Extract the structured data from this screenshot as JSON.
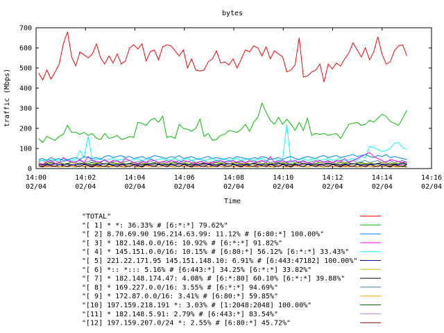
{
  "chart_data": {
    "type": "line",
    "title": "bytes",
    "xlabel": "Time",
    "ylabel": "traffic (Mbps)",
    "ylim": [
      0,
      700
    ],
    "yticks": [
      0,
      100,
      200,
      300,
      400,
      500,
      600,
      700
    ],
    "xlim": [
      0,
      16
    ],
    "xticks": [
      {
        "value": 0,
        "time": "14:00",
        "date": "02/04"
      },
      {
        "value": 2,
        "time": "14:02",
        "date": "02/04"
      },
      {
        "value": 4,
        "time": "14:04",
        "date": "02/04"
      },
      {
        "value": 6,
        "time": "14:06",
        "date": "02/04"
      },
      {
        "value": 8,
        "time": "14:08",
        "date": "02/04"
      },
      {
        "value": 10,
        "time": "14:10",
        "date": "02/04"
      },
      {
        "value": 12,
        "time": "14:12",
        "date": "02/04"
      },
      {
        "value": 14,
        "time": "14:14",
        "date": "02/04"
      },
      {
        "value": 16,
        "time": "14:16",
        "date": "02/04"
      }
    ],
    "x_range": [
      0.1,
      15.0
    ],
    "series": [
      {
        "name": "\"TOTAL\"",
        "color": "#ff0000",
        "values": [
          475,
          440,
          490,
          445,
          480,
          520,
          620,
          680,
          555,
          510,
          580,
          565,
          550,
          570,
          620,
          550,
          520,
          560,
          525,
          570,
          520,
          535,
          600,
          615,
          595,
          620,
          535,
          580,
          590,
          540,
          605,
          615,
          610,
          585,
          560,
          590,
          500,
          545,
          490,
          485,
          490,
          530,
          545,
          585,
          525,
          530,
          515,
          545,
          500,
          545,
          590,
          580,
          610,
          600,
          560,
          605,
          545,
          585,
          570,
          555,
          480,
          490,
          515,
          650,
          455,
          460,
          480,
          490,
          520,
          430,
          520,
          495,
          525,
          510,
          545,
          575,
          625,
          590,
          555,
          600,
          540,
          580,
          655,
          570,
          520,
          530,
          585,
          610,
          615,
          560
        ]
      },
      {
        "name": "\"[ 1] * *: 36.33% # [6:*:*] 79.62%\"",
        "color": "#00c000",
        "values": [
          150,
          130,
          160,
          150,
          140,
          160,
          170,
          215,
          180,
          180,
          170,
          180,
          165,
          175,
          150,
          145,
          175,
          150,
          155,
          165,
          145,
          150,
          160,
          155,
          230,
          225,
          215,
          240,
          250,
          230,
          260,
          155,
          160,
          150,
          220,
          200,
          195,
          185,
          200,
          245,
          160,
          175,
          140,
          145,
          165,
          170,
          190,
          185,
          180,
          195,
          220,
          185,
          230,
          255,
          325,
          280,
          240,
          220,
          255,
          220,
          245,
          220,
          190,
          230,
          190,
          250,
          165,
          175,
          170,
          175,
          165,
          170,
          175,
          150,
          185,
          220,
          225,
          230,
          215,
          220,
          240,
          230,
          250,
          270,
          260,
          235,
          225,
          215,
          250,
          290
        ]
      },
      {
        "name": "\"[ 2] 8.70.69.90 196.214.63.99: 11.12% # [6:80:*] 100.00%\"",
        "color": "#0080ff",
        "values": [
          45,
          50,
          40,
          55,
          45,
          50,
          40,
          45,
          50,
          55,
          45,
          60,
          55,
          50,
          55,
          45,
          60,
          65,
          55,
          60,
          65,
          55,
          60,
          50,
          55,
          60,
          50,
          55,
          65,
          60,
          55,
          50,
          60,
          55,
          65,
          50,
          55,
          60,
          50,
          45,
          55,
          60,
          50,
          55,
          50,
          45,
          55,
          50,
          60,
          55,
          50,
          45,
          55,
          50,
          60,
          55,
          45,
          50,
          55,
          45,
          55,
          60,
          50,
          45,
          55,
          60,
          55,
          50,
          60,
          65,
          55,
          60,
          65,
          55,
          60,
          65,
          70,
          60,
          65,
          70,
          60,
          55,
          65,
          60,
          70,
          55,
          60,
          55,
          50,
          45
        ]
      },
      {
        "name": "\"[ 3] * 182.148.0.0/16: 10.92% # [6:*:*] 91.82%\"",
        "color": "#ff00ff",
        "values": [
          30,
          20,
          35,
          40,
          25,
          30,
          55,
          40,
          35,
          30,
          45,
          30,
          60,
          40,
          35,
          30,
          45,
          30,
          40,
          35,
          30,
          50,
          40,
          30,
          25,
          35,
          30,
          45,
          40,
          30,
          35,
          30,
          40,
          35,
          30,
          40,
          35,
          30,
          25,
          35,
          30,
          25,
          30,
          35,
          40,
          30,
          35,
          40,
          30,
          35,
          30,
          40,
          30,
          35,
          40,
          30,
          60,
          30,
          35,
          40,
          30,
          35,
          40,
          30,
          35,
          30,
          25,
          35,
          40,
          30,
          35,
          30,
          40,
          35,
          50,
          30,
          40,
          50,
          60,
          70,
          80,
          60,
          50,
          40,
          30,
          45,
          40,
          35,
          30,
          35
        ]
      },
      {
        "name": "\"[ 4] * 145.151.0.0/16: 10.15% # [6:80:*] 56.12% [6:*:*] 33.43%\"",
        "color": "#00ffff",
        "values": [
          40,
          40,
          45,
          40,
          45,
          40,
          50,
          45,
          40,
          45,
          90,
          55,
          160,
          40,
          45,
          50,
          40,
          45,
          50,
          40,
          45,
          50,
          40,
          45,
          50,
          40,
          45,
          50,
          40,
          45,
          50,
          40,
          45,
          50,
          40,
          45,
          50,
          40,
          45,
          50,
          40,
          45,
          50,
          40,
          45,
          50,
          40,
          45,
          50,
          40,
          45,
          50,
          40,
          45,
          50,
          40,
          45,
          50,
          40,
          45,
          220,
          30,
          40,
          45,
          50,
          40,
          45,
          50,
          40,
          45,
          50,
          40,
          45,
          50,
          40,
          45,
          50,
          40,
          60,
          55,
          110,
          105,
          95,
          85,
          90,
          100,
          125,
          130,
          105,
          95
        ]
      },
      {
        "name": "\"[ 5] 221.22.171.95 145.151.148.10: 6.91% # [6:443:47182] 100.00%\"",
        "color": "#00008b",
        "values": [
          20,
          18,
          22,
          20,
          25,
          18,
          20,
          22,
          18,
          20,
          22,
          25,
          20,
          18,
          22,
          20,
          25,
          22,
          20,
          18,
          22,
          20,
          25,
          22,
          20,
          18,
          22,
          20,
          25,
          22,
          20,
          18,
          22,
          20,
          25,
          22,
          20,
          18,
          22,
          20,
          25,
          22,
          20,
          18,
          22,
          20,
          25,
          22,
          20,
          18,
          22,
          20,
          25,
          22,
          20,
          18,
          22,
          20,
          25,
          22,
          20,
          18,
          22,
          20,
          25,
          22,
          20,
          18,
          22,
          20,
          25,
          22,
          20,
          18,
          22,
          20,
          25,
          22,
          20,
          18,
          22,
          20,
          25,
          22,
          20,
          18,
          22,
          20,
          25,
          22
        ]
      },
      {
        "name": "\"[ 6] *:: *::: 5.16% # [6:443:*] 34.25% [6:*:*] 33.82%\"",
        "color": "#c0c000",
        "values": [
          25,
          20,
          30,
          25,
          20,
          30,
          25,
          20,
          30,
          25,
          20,
          30,
          25,
          20,
          30,
          25,
          20,
          30,
          25,
          20,
          30,
          25,
          20,
          30,
          25,
          20,
          30,
          25,
          20,
          30,
          25,
          20,
          30,
          25,
          20,
          30,
          25,
          20,
          30,
          25,
          20,
          30,
          25,
          20,
          30,
          25,
          20,
          30,
          25,
          20,
          30,
          25,
          20,
          30,
          25,
          20,
          30,
          25,
          20,
          30,
          25,
          20,
          30,
          25,
          20,
          30,
          25,
          20,
          30,
          25,
          20,
          30,
          25,
          20,
          30,
          25,
          20,
          30,
          25,
          20,
          30,
          25,
          20,
          30,
          25,
          20,
          30,
          25,
          20,
          30
        ]
      },
      {
        "name": "\"[ 7] * 182.148.174.47: 4.08% # [6:*:80] 60.10% [6:*:*] 39.88%\"",
        "color": "#000000",
        "values": [
          15,
          10,
          20,
          15,
          10,
          20,
          15,
          10,
          20,
          15,
          10,
          20,
          15,
          10,
          20,
          15,
          10,
          20,
          15,
          10,
          20,
          15,
          10,
          20,
          15,
          10,
          20,
          15,
          10,
          20,
          15,
          10,
          20,
          15,
          10,
          20,
          15,
          10,
          20,
          15,
          10,
          20,
          15,
          10,
          20,
          15,
          10,
          20,
          15,
          10,
          20,
          15,
          10,
          20,
          15,
          10,
          20,
          15,
          10,
          20,
          15,
          10,
          20,
          15,
          10,
          20,
          15,
          10,
          20,
          15,
          10,
          20,
          15,
          10,
          20,
          15,
          10,
          20,
          15,
          10,
          20,
          15,
          10,
          20,
          15,
          10,
          20,
          15,
          10,
          20
        ]
      },
      {
        "name": "\"[ 8] * 169.227.0.0/16: 3.55% # [6:*:*] 94.69%\"",
        "color": "#4682b4",
        "values": [
          35,
          40,
          30,
          35,
          40,
          30,
          35,
          40,
          30,
          35,
          40,
          30,
          35,
          40,
          30,
          35,
          40,
          30,
          35,
          40,
          30,
          35,
          40,
          30,
          35,
          40,
          30,
          35,
          40,
          30,
          35,
          40,
          30,
          35,
          40,
          30,
          35,
          40,
          30,
          35,
          40,
          30,
          35,
          40,
          30,
          35,
          40,
          30,
          35,
          40,
          30,
          35,
          40,
          30,
          35,
          40,
          30,
          35,
          40,
          30,
          35,
          40,
          30,
          35,
          40,
          30,
          35,
          40,
          30,
          35,
          40,
          30,
          35,
          40,
          30,
          35,
          40,
          30,
          35,
          40,
          30,
          35,
          40,
          30,
          35,
          40,
          30,
          35,
          40,
          30
        ]
      },
      {
        "name": "\"[ 9] * 172.87.0.0/16: 3.41% # [6:80:*] 59.85%\"",
        "color": "#ffa500",
        "values": [
          10,
          15,
          8,
          12,
          15,
          10,
          8,
          15,
          12,
          10,
          15,
          8,
          12,
          15,
          10,
          8,
          15,
          12,
          10,
          15,
          8,
          12,
          15,
          10,
          8,
          15,
          12,
          10,
          15,
          8,
          12,
          15,
          10,
          8,
          15,
          12,
          10,
          15,
          8,
          12,
          15,
          10,
          8,
          15,
          12,
          10,
          15,
          8,
          12,
          15,
          10,
          8,
          15,
          12,
          10,
          15,
          8,
          12,
          15,
          10,
          8,
          15,
          12,
          10,
          15,
          8,
          12,
          15,
          10,
          8,
          15,
          12,
          10,
          15,
          8,
          12,
          15,
          10,
          8,
          15,
          12,
          10,
          15,
          8,
          12,
          15,
          10,
          8,
          15,
          12
        ]
      },
      {
        "name": "\"[10] 197.159.218.191 *: 3.03% # [1:2048:2048] 100.00%\"",
        "color": "#006400",
        "values": [
          28,
          22,
          26,
          30,
          24,
          28,
          22,
          26,
          30,
          24,
          28,
          22,
          26,
          30,
          24,
          28,
          22,
          26,
          30,
          24,
          28,
          22,
          26,
          30,
          24,
          28,
          22,
          26,
          30,
          24,
          28,
          22,
          26,
          30,
          24,
          28,
          22,
          26,
          30,
          24,
          28,
          22,
          26,
          30,
          24,
          28,
          22,
          26,
          30,
          24,
          28,
          22,
          26,
          30,
          24,
          28,
          22,
          26,
          30,
          24,
          28,
          22,
          26,
          30,
          24,
          28,
          22,
          26,
          30,
          24,
          28,
          22,
          26,
          30,
          24,
          28,
          22,
          26,
          30,
          24,
          28,
          22,
          26,
          30,
          24,
          28,
          22,
          26,
          30,
          24
        ]
      },
      {
        "name": "\"[11] * 182.148.5.91: 2.79% # [6:443:*] 83.54%\"",
        "color": "#b07cff",
        "values": [
          18,
          25,
          20,
          15,
          22,
          18,
          25,
          20,
          15,
          22,
          18,
          25,
          20,
          15,
          22,
          18,
          25,
          20,
          15,
          22,
          18,
          25,
          20,
          15,
          22,
          18,
          25,
          20,
          15,
          22,
          18,
          25,
          20,
          15,
          22,
          18,
          25,
          20,
          15,
          22,
          18,
          25,
          20,
          15,
          22,
          18,
          25,
          20,
          15,
          22,
          18,
          25,
          20,
          15,
          22,
          18,
          25,
          20,
          15,
          22,
          18,
          25,
          20,
          15,
          22,
          18,
          25,
          20,
          15,
          22,
          18,
          25,
          20,
          15,
          22,
          18,
          25,
          20,
          15,
          22,
          18,
          25,
          20,
          15,
          22,
          18,
          25,
          20,
          15,
          22
        ]
      },
      {
        "name": "\"[12] 197.159.207.0/24 *: 2.55% # [6:80:*] 45.72%\"",
        "color": "#8b0000",
        "values": [
          12,
          8,
          14,
          10,
          12,
          8,
          14,
          10,
          12,
          8,
          14,
          10,
          12,
          8,
          14,
          10,
          12,
          8,
          14,
          10,
          12,
          8,
          14,
          10,
          12,
          8,
          14,
          10,
          12,
          8,
          14,
          10,
          12,
          8,
          14,
          10,
          12,
          8,
          14,
          10,
          12,
          8,
          14,
          10,
          12,
          8,
          14,
          10,
          12,
          8,
          14,
          10,
          12,
          8,
          14,
          10,
          12,
          8,
          14,
          10,
          12,
          8,
          14,
          10,
          12,
          8,
          14,
          10,
          12,
          8,
          14,
          10,
          12,
          8,
          14,
          10,
          12,
          8,
          14,
          10,
          12,
          8,
          14,
          10,
          12,
          8,
          14,
          10,
          12,
          8
        ]
      }
    ]
  }
}
